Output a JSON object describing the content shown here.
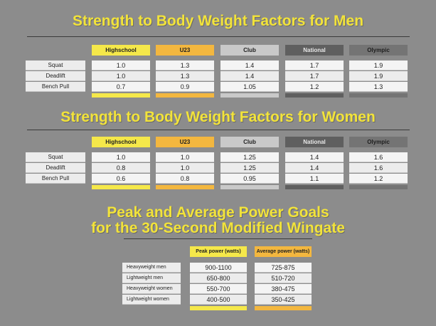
{
  "colors": {
    "background": "#8c8c8c",
    "title": "#f2e33a",
    "highschool": "#f5e84a",
    "u23": "#f3b73f",
    "club": "#c9c9c9",
    "national": "#5f5f5f",
    "olympic": "#747474",
    "peak": "#f5e84a",
    "average": "#f3b73f"
  },
  "men": {
    "title": "Strength to Body Weight Factors for Men",
    "columns": [
      "Highschool",
      "U23",
      "Club",
      "National",
      "Olympic"
    ],
    "rows": [
      {
        "label": "Squat",
        "values": [
          "1.0",
          "1.3",
          "1.4",
          "1.7",
          "1.9"
        ]
      },
      {
        "label": "Deadlift",
        "values": [
          "1.0",
          "1.3",
          "1.4",
          "1.7",
          "1.9"
        ]
      },
      {
        "label": "Bench Pull",
        "values": [
          "0.7",
          "0.9",
          "1.05",
          "1.2",
          "1.3"
        ]
      }
    ]
  },
  "women": {
    "title": "Strength to Body Weight Factors for Women",
    "columns": [
      "Highschool",
      "U23",
      "Club",
      "National",
      "Olympic"
    ],
    "rows": [
      {
        "label": "Squat",
        "values": [
          "1.0",
          "1.0",
          "1.25",
          "1.4",
          "1.6"
        ]
      },
      {
        "label": "Deadlift",
        "values": [
          "0.8",
          "1.0",
          "1.25",
          "1.4",
          "1.6"
        ]
      },
      {
        "label": "Bench Pull",
        "values": [
          "0.6",
          "0.8",
          "0.95",
          "1.1",
          "1.2"
        ]
      }
    ]
  },
  "power": {
    "title_line1": "Peak and Average Power Goals",
    "title_line2": "for the 30-Second Modified Wingate",
    "columns": [
      "Peak power (watts)",
      "Average power (watts)"
    ],
    "rows": [
      {
        "label": "Heavyweight men",
        "values": [
          "900-1100",
          "725-875"
        ]
      },
      {
        "label": "Lightweight men",
        "values": [
          "650-800",
          "510-720"
        ]
      },
      {
        "label": "Heavyweight women",
        "values": [
          "550-700",
          "380-475"
        ]
      },
      {
        "label": "Lightweight women",
        "values": [
          "400-500",
          "350-425"
        ]
      }
    ]
  }
}
